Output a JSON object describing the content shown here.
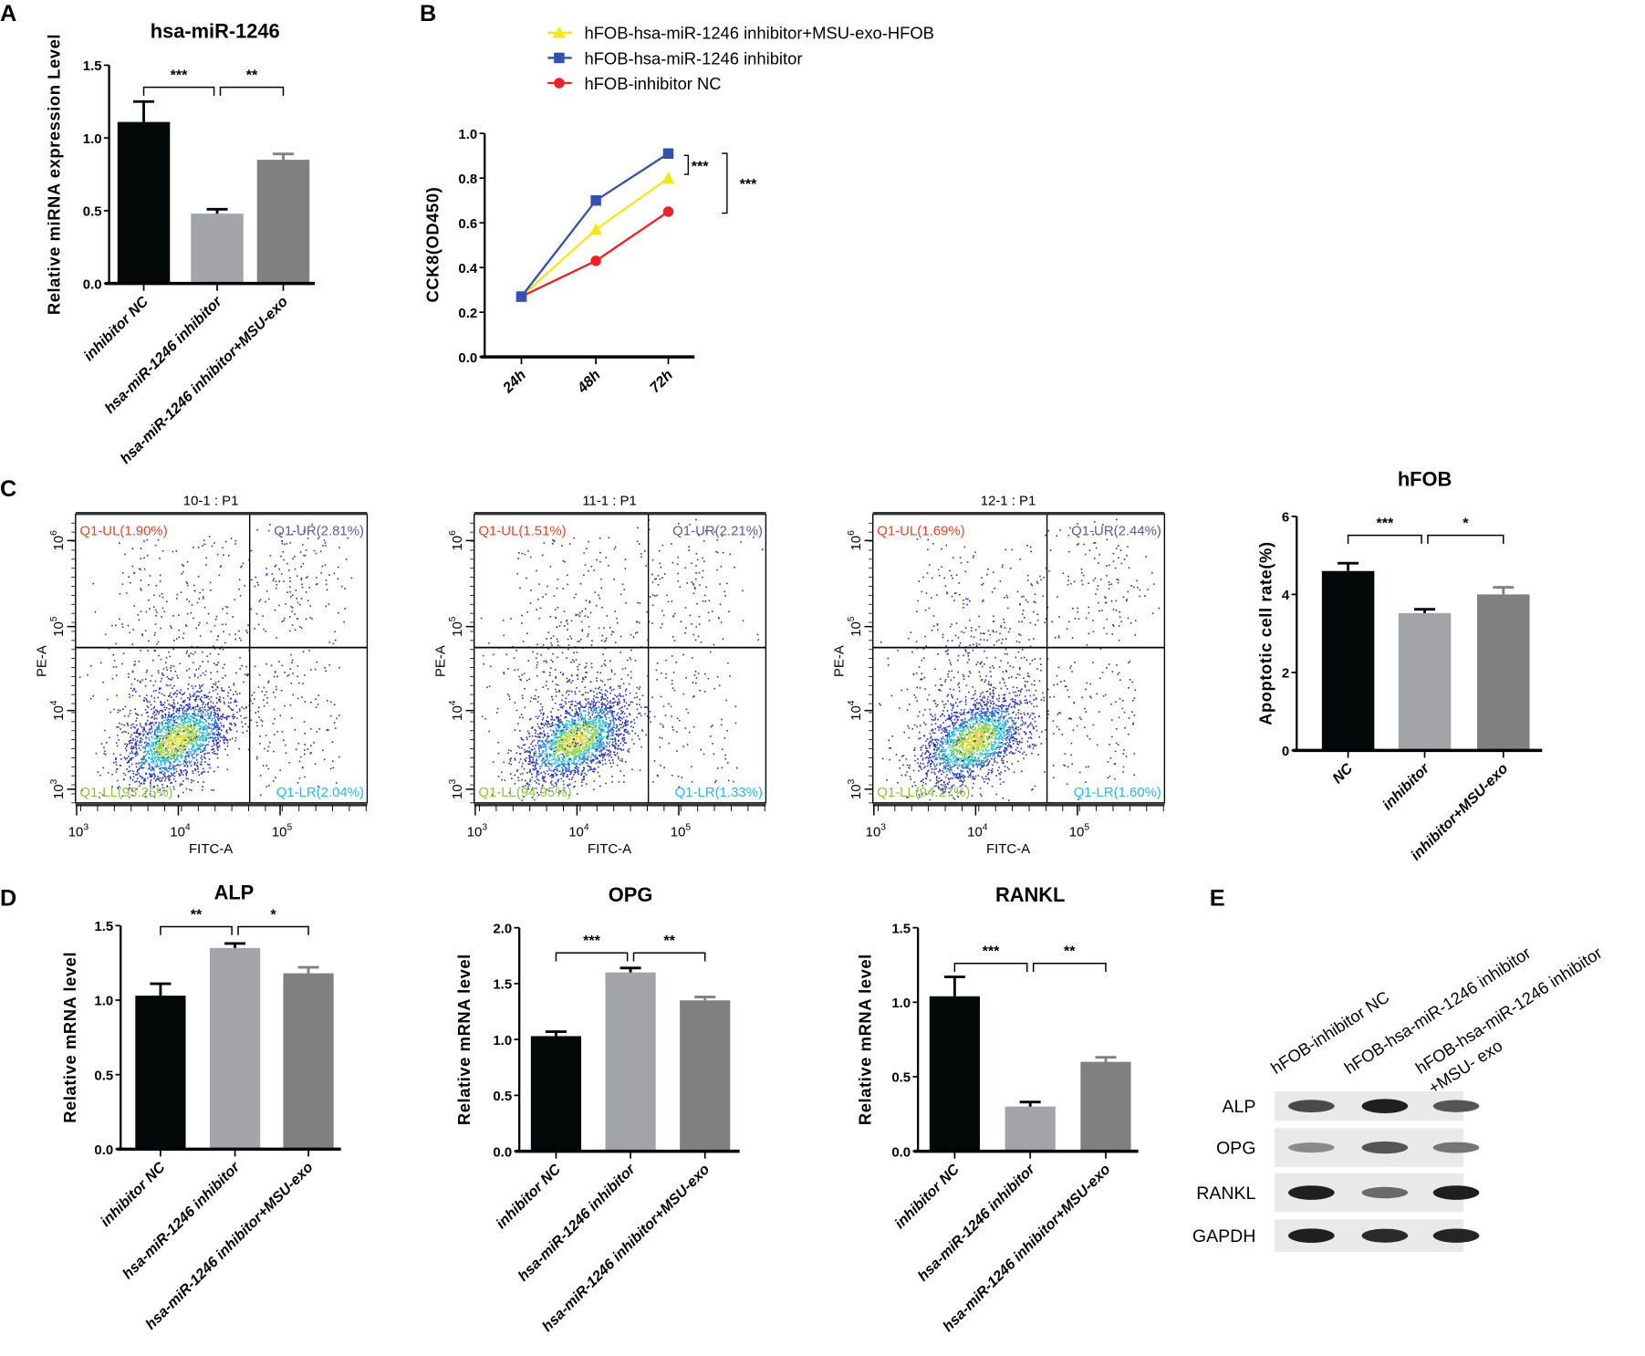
{
  "panel_labels": [
    "A",
    "B",
    "C",
    "D",
    "E"
  ],
  "colors": {
    "bar_nc": "#050808",
    "bar_inhibitor": "#a3a4a8",
    "bar_msu": "#7f807f",
    "line_yellow": "#f5e61c",
    "line_blue": "#3550b0",
    "line_red": "#ee2226",
    "q_ul": "#e8432a",
    "q_ur": "#5a5a9a",
    "q_ll": "#8ac43f",
    "q_lr": "#29b5e8"
  },
  "chart_data": [
    {
      "id": "A",
      "type": "bar",
      "title": "hsa-miR-1246",
      "ylabel": "Relative miRNA expression Level",
      "xlabel": "",
      "categories": [
        "inhibitor NC",
        "hsa-miR-1246 inhibitor",
        "hsa-miR-1246 inhibitor+MSU-exo"
      ],
      "values": [
        1.11,
        0.48,
        0.85
      ],
      "errors": [
        0.14,
        0.03,
        0.04
      ],
      "ylim": [
        0,
        1.5
      ],
      "yticks": [
        "0.0",
        "0.5",
        "1.0",
        "1.5"
      ],
      "significance": [
        {
          "from": 0,
          "to": 1,
          "label": "***"
        },
        {
          "from": 1,
          "to": 2,
          "label": "**"
        }
      ]
    },
    {
      "id": "B",
      "type": "line",
      "title": "",
      "ylabel": "CCK8(OD450)",
      "xlabel": "",
      "x": [
        "24h",
        "48h",
        "72h"
      ],
      "ylim": [
        0,
        1.0
      ],
      "yticks": [
        "0.0",
        "0.2",
        "0.4",
        "0.6",
        "0.8",
        "1.0"
      ],
      "legend_position": "top",
      "series": [
        {
          "name": "hFOB-hsa-miR-1246 inhibitor+MSU-exo-HFOB",
          "marker": "triangle",
          "color_key": "line_yellow",
          "values": [
            0.27,
            0.57,
            0.8
          ]
        },
        {
          "name": "hFOB-hsa-miR-1246 inhibitor",
          "marker": "square",
          "color_key": "line_blue",
          "values": [
            0.27,
            0.7,
            0.91
          ]
        },
        {
          "name": "hFOB-inhibitor NC",
          "marker": "circle",
          "color_key": "line_red",
          "values": [
            0.27,
            0.43,
            0.65
          ]
        }
      ],
      "significance": [
        {
          "label": "***",
          "between": [
            "blue",
            "yellow"
          ]
        },
        {
          "label": "***",
          "between": [
            "blue",
            "red"
          ]
        }
      ]
    },
    {
      "id": "C-flow",
      "type": "scatter",
      "xlabel": "FITC-A",
      "ylabel": "PE-A",
      "x_tick_exponents": [
        3,
        4,
        5
      ],
      "y_tick_exponents": [
        3,
        4,
        5,
        6
      ],
      "tick_base": "10",
      "plots": [
        {
          "title": "10-1 : P1",
          "UL": "Q1-UL(1.90%)",
          "UR": "Q1-UR(2.81%)",
          "LL": "Q1-LL(93.25%)",
          "LR": "Q1-LR(2.04%)",
          "ul": 1.9,
          "ur": 2.81,
          "ll": 93.25,
          "lr": 2.04
        },
        {
          "title": "11-1 : P1",
          "UL": "Q1-UL(1.51%)",
          "UR": "Q1-UR(2.21%)",
          "LL": "Q1-LL(94.95%)",
          "LR": "Q1-LR(1.33%)",
          "ul": 1.51,
          "ur": 2.21,
          "ll": 94.95,
          "lr": 1.33
        },
        {
          "title": "12-1 : P1",
          "UL": "Q1-UL(1.69%)",
          "UR": "Q1-UR(2.44%)",
          "LL": "Q1-LL(94.27%)",
          "LR": "Q1-LR(1.60%)",
          "ul": 1.69,
          "ur": 2.44,
          "ll": 94.27,
          "lr": 1.6
        }
      ]
    },
    {
      "id": "C-bar",
      "type": "bar",
      "title": "hFOB",
      "ylabel": "Apoptotic cell rate(%)",
      "xlabel": "",
      "categories": [
        "NC",
        "inhibitor",
        "inhibitor+MSU-exo"
      ],
      "values": [
        4.6,
        3.52,
        4.0
      ],
      "errors": [
        0.2,
        0.1,
        0.18
      ],
      "ylim": [
        0,
        6
      ],
      "yticks": [
        "0",
        "2",
        "4",
        "6"
      ],
      "significance": [
        {
          "from": 0,
          "to": 1,
          "label": "***"
        },
        {
          "from": 1,
          "to": 2,
          "label": "*"
        }
      ]
    },
    {
      "id": "D-ALP",
      "type": "bar",
      "title": "ALP",
      "ylabel": "Relative mRNA level",
      "xlabel": "",
      "categories": [
        "inhibitor NC",
        "hsa-miR-1246 inhibitor",
        "hsa-miR-1246 inhibitor+MSU-exo"
      ],
      "values": [
        1.03,
        1.35,
        1.18
      ],
      "errors": [
        0.08,
        0.03,
        0.04
      ],
      "ylim": [
        0,
        1.5
      ],
      "yticks": [
        "0.0",
        "0.5",
        "1.0",
        "1.5"
      ],
      "significance": [
        {
          "from": 0,
          "to": 1,
          "label": "**"
        },
        {
          "from": 1,
          "to": 2,
          "label": "*"
        }
      ]
    },
    {
      "id": "D-OPG",
      "type": "bar",
      "title": "OPG",
      "ylabel": "Relative mRNA level",
      "xlabel": "",
      "categories": [
        "inhibitor NC",
        "hsa-miR-1246 inhibitor",
        "hsa-miR-1246 inhibitor+MSU-exo"
      ],
      "values": [
        1.03,
        1.6,
        1.35
      ],
      "errors": [
        0.04,
        0.04,
        0.03
      ],
      "ylim": [
        0,
        2.0
      ],
      "yticks": [
        "0.0",
        "0.5",
        "1.0",
        "1.5",
        "2.0"
      ],
      "significance": [
        {
          "from": 0,
          "to": 1,
          "label": "***"
        },
        {
          "from": 1,
          "to": 2,
          "label": "**"
        }
      ]
    },
    {
      "id": "D-RANKL",
      "type": "bar",
      "title": "RANKL",
      "ylabel": "Relative mRNA level",
      "xlabel": "",
      "categories": [
        "inhibitor NC",
        "hsa-miR-1246 inhibitor",
        "hsa-miR-1246 inhibitor+MSU-exo"
      ],
      "values": [
        1.04,
        0.3,
        0.6
      ],
      "errors": [
        0.13,
        0.03,
        0.03
      ],
      "ylim": [
        0,
        1.5
      ],
      "yticks": [
        "0.0",
        "0.5",
        "1.0",
        "1.5"
      ],
      "significance": [
        {
          "from": 0,
          "to": 1,
          "label": "***"
        },
        {
          "from": 1,
          "to": 2,
          "label": "**"
        }
      ]
    }
  ],
  "western_blot": {
    "lanes": [
      {
        "lines": [
          "hFOB-inhibitor NC"
        ]
      },
      {
        "lines": [
          "hFOB-hsa-miR-1246 inhibitor"
        ]
      },
      {
        "lines": [
          "hFOB-hsa-miR-1246 inhibitor",
          "+MSU- exo"
        ]
      }
    ],
    "rows": [
      {
        "label": "ALP",
        "band_intensity": [
          0.75,
          0.95,
          0.7
        ]
      },
      {
        "label": "OPG",
        "band_intensity": [
          0.45,
          0.7,
          0.55
        ]
      },
      {
        "label": "RANKL",
        "band_intensity": [
          0.95,
          0.6,
          0.95
        ]
      },
      {
        "label": "GAPDH",
        "band_intensity": [
          0.95,
          0.9,
          0.92
        ]
      }
    ]
  }
}
